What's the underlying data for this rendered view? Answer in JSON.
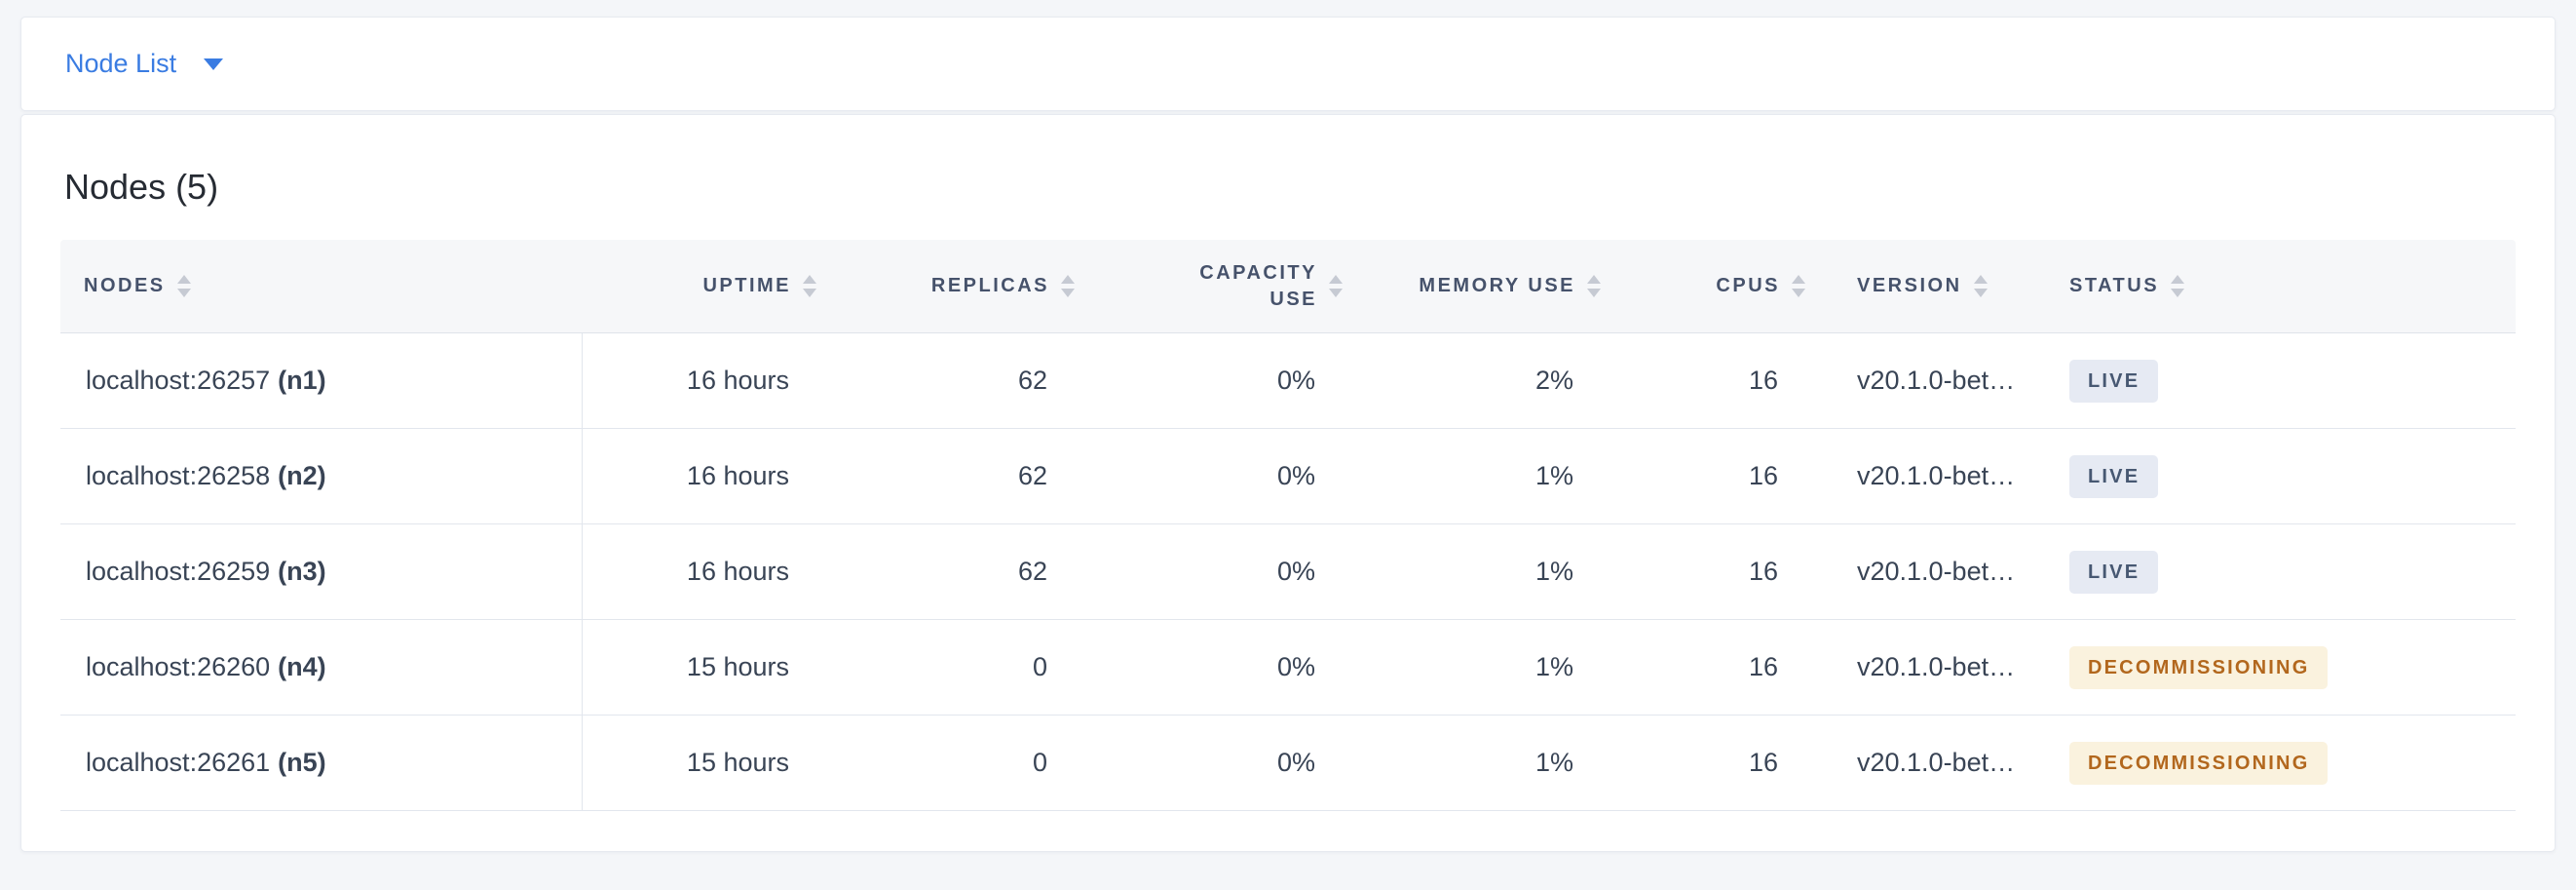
{
  "toolbar": {
    "view_label": "Node List"
  },
  "main": {
    "title": "Nodes (5)",
    "table": {
      "columns": [
        {
          "key": "nodes",
          "label": "NODES",
          "align": "left"
        },
        {
          "key": "uptime",
          "label": "UPTIME",
          "align": "right"
        },
        {
          "key": "replicas",
          "label": "REPLICAS",
          "align": "right"
        },
        {
          "key": "capacity_use",
          "label": "CAPACITY USE",
          "align": "right",
          "wrap": true
        },
        {
          "key": "memory_use",
          "label": "MEMORY USE",
          "align": "right"
        },
        {
          "key": "cpus",
          "label": "CPUS",
          "align": "right"
        },
        {
          "key": "version",
          "label": "VERSION",
          "align": "left"
        },
        {
          "key": "status",
          "label": "STATUS",
          "align": "left"
        }
      ],
      "rows": [
        {
          "address": "localhost:26257",
          "node_id": "(n1)",
          "uptime": "16 hours",
          "replicas": "62",
          "capacity_use": "0%",
          "memory_use": "2%",
          "cpus": "16",
          "version": "v20.1.0-bet…",
          "status": "LIVE",
          "status_kind": "live"
        },
        {
          "address": "localhost:26258",
          "node_id": "(n2)",
          "uptime": "16 hours",
          "replicas": "62",
          "capacity_use": "0%",
          "memory_use": "1%",
          "cpus": "16",
          "version": "v20.1.0-bet…",
          "status": "LIVE",
          "status_kind": "live"
        },
        {
          "address": "localhost:26259",
          "node_id": "(n3)",
          "uptime": "16 hours",
          "replicas": "62",
          "capacity_use": "0%",
          "memory_use": "1%",
          "cpus": "16",
          "version": "v20.1.0-bet…",
          "status": "LIVE",
          "status_kind": "live"
        },
        {
          "address": "localhost:26260",
          "node_id": "(n4)",
          "uptime": "15 hours",
          "replicas": "0",
          "capacity_use": "0%",
          "memory_use": "1%",
          "cpus": "16",
          "version": "v20.1.0-bet…",
          "status": "DECOMMISSIONING",
          "status_kind": "decommissioning"
        },
        {
          "address": "localhost:26261",
          "node_id": "(n5)",
          "uptime": "15 hours",
          "replicas": "0",
          "capacity_use": "0%",
          "memory_use": "1%",
          "cpus": "16",
          "version": "v20.1.0-bet…",
          "status": "DECOMMISSIONING",
          "status_kind": "decommissioning"
        }
      ]
    }
  },
  "colors": {
    "accent_blue": "#3a7ce2",
    "live_badge_bg": "#e6eaf3",
    "live_badge_text": "#475872",
    "decommissioning_badge_bg": "#faf2de",
    "decommissioning_badge_text": "#b2671d",
    "header_bg": "#f6f7f9",
    "row_border": "#e2e6ed",
    "body_text": "#394455",
    "header_text": "#46526b"
  }
}
